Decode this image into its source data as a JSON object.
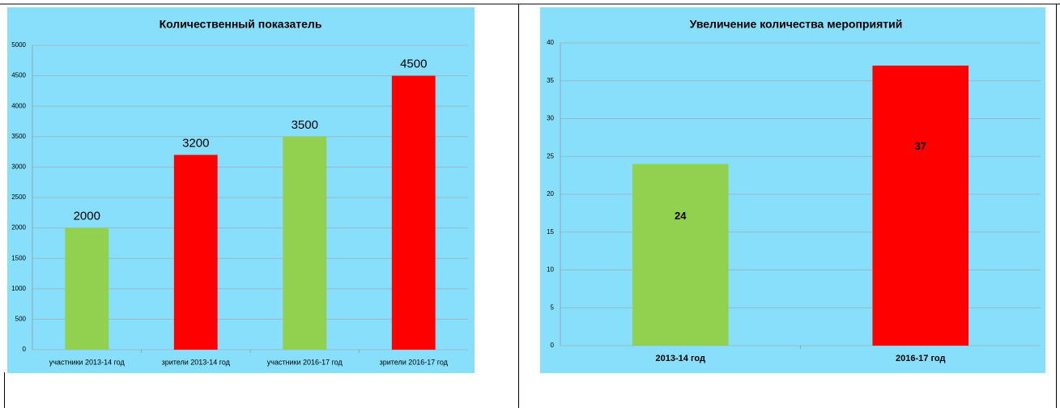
{
  "chart_data": [
    {
      "type": "bar",
      "title": "Количественный показатель",
      "categories": [
        "участники 2013-14 год",
        "зрители 2013-14 год",
        "участники 2016-17 год",
        "зрители  2016-17 год"
      ],
      "values": [
        2000,
        3200,
        3500,
        4500
      ],
      "colors": [
        "#92d050",
        "#ff0000",
        "#92d050",
        "#ff0000"
      ],
      "ylim": [
        0,
        5000
      ],
      "yticks": [
        0,
        500,
        1000,
        1500,
        2000,
        2500,
        3000,
        3500,
        4000,
        4500,
        5000
      ],
      "grid": true,
      "data_labels": "above"
    },
    {
      "type": "bar",
      "title": "Увеличение количества мероприятий",
      "categories": [
        "2013-14 год",
        "2016-17 год"
      ],
      "values": [
        24,
        37
      ],
      "colors": [
        "#92d050",
        "#ff0000"
      ],
      "ylim": [
        0,
        40
      ],
      "yticks": [
        0,
        5,
        10,
        15,
        20,
        25,
        30,
        35,
        40
      ],
      "grid": true,
      "data_labels": "inside"
    }
  ]
}
